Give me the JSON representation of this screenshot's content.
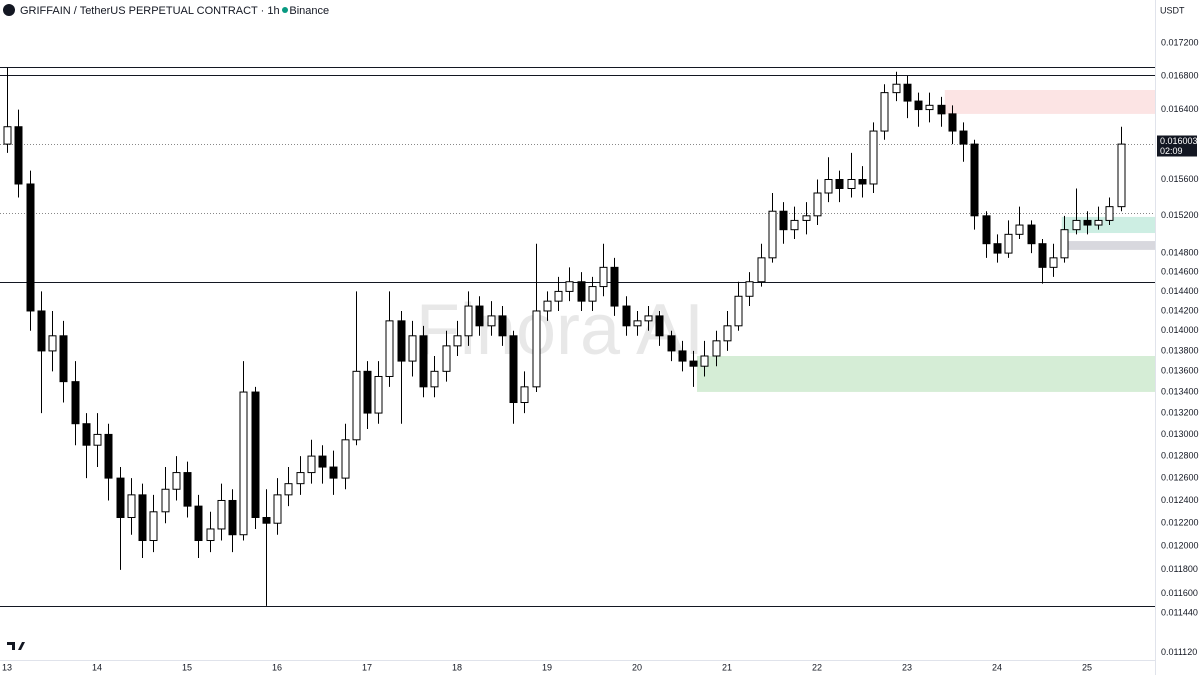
{
  "chart_data": {
    "type": "candlestick",
    "title": "GRIFFAIN / TetherUS PERPETUAL CONTRACT · 1h · Binance",
    "currency_label": "USDT",
    "watermark": "Finora AI",
    "last_price": 0.016003,
    "countdown": "02:09",
    "log_scale": true,
    "grid": false,
    "up_color": "#ffffff",
    "down_color": "#000000",
    "wick_color": "#000000",
    "xlim": [
      12.922,
      25.756
    ],
    "ylim": [
      0.011063,
      0.017737
    ],
    "xticks": [
      13,
      14,
      15,
      16,
      17,
      18,
      19,
      20,
      21,
      22,
      23,
      24,
      25
    ],
    "yticks": [
      {
        "value": 0.0172,
        "label": "0.017200"
      },
      {
        "value": 0.0168,
        "label": "0.016800"
      },
      {
        "value": 0.0164,
        "label": "0.016400"
      },
      {
        "value": 0.0156,
        "label": "0.015600"
      },
      {
        "value": 0.0152,
        "label": "0.015200"
      },
      {
        "value": 0.0148,
        "label": "0.014800"
      },
      {
        "value": 0.0146,
        "label": "0.014600"
      },
      {
        "value": 0.0144,
        "label": "0.014400"
      },
      {
        "value": 0.0142,
        "label": "0.014200"
      },
      {
        "value": 0.014,
        "label": "0.014000"
      },
      {
        "value": 0.0138,
        "label": "0.013800"
      },
      {
        "value": 0.0136,
        "label": "0.013600"
      },
      {
        "value": 0.0134,
        "label": "0.013400"
      },
      {
        "value": 0.0132,
        "label": "0.013200"
      },
      {
        "value": 0.013,
        "label": "0.013000"
      },
      {
        "value": 0.0128,
        "label": "0.012800"
      },
      {
        "value": 0.0126,
        "label": "0.012600"
      },
      {
        "value": 0.0124,
        "label": "0.012400"
      },
      {
        "value": 0.0122,
        "label": "0.012200"
      },
      {
        "value": 0.012,
        "label": "0.012000"
      },
      {
        "value": 0.0118,
        "label": "0.011800"
      },
      {
        "value": 0.0116,
        "label": "0.011600"
      },
      {
        "value": 0.01144,
        "label": "0.011440"
      },
      {
        "value": 0.01112,
        "label": "0.011120"
      }
    ],
    "levels": [
      {
        "value": 0.016907,
        "style": "solid"
      },
      {
        "value": 0.016811,
        "style": "solid"
      },
      {
        "value": 0.014498,
        "style": "solid"
      },
      {
        "value": 0.011498,
        "style": "solid"
      },
      {
        "value": 0.015231,
        "style": "dotted"
      }
    ],
    "zones": [
      {
        "from": 0.016631,
        "to": 0.016349,
        "x_start": 23.42,
        "color": "#fce4e4"
      },
      {
        "from": 0.01375,
        "to": 0.013401,
        "x_start": 20.667,
        "color": "#d5edd6"
      },
      {
        "from": 0.015188,
        "to": 0.015014,
        "x_start": 24.72,
        "color": "#cdeee3"
      },
      {
        "from": 0.014928,
        "to": 0.014834,
        "x_start": 24.72,
        "color": "#d8d8de"
      }
    ],
    "x": [
      13,
      13.125,
      13.25,
      13.375,
      13.5,
      13.625,
      13.75,
      13.875,
      14,
      14.125,
      14.25,
      14.375,
      14.5,
      14.625,
      14.75,
      14.875,
      15,
      15.125,
      15.25,
      15.375,
      15.5,
      15.625,
      15.75,
      15.875,
      16,
      16.125,
      16.25,
      16.375,
      16.5,
      16.625,
      16.75,
      16.875,
      17,
      17.125,
      17.25,
      17.375,
      17.5,
      17.625,
      17.75,
      17.875,
      18,
      18.125,
      18.25,
      18.375,
      18.5,
      18.625,
      18.75,
      18.875,
      19,
      19.125,
      19.25,
      19.375,
      19.5,
      19.625,
      19.75,
      19.875,
      20,
      20.125,
      20.25,
      20.375,
      20.5,
      20.625,
      20.75,
      20.875,
      21,
      21.125,
      21.25,
      21.375,
      21.5,
      21.625,
      21.75,
      21.875,
      22,
      22.125,
      22.25,
      22.375,
      22.5,
      22.625,
      22.75,
      22.875,
      23,
      23.125,
      23.25,
      23.375,
      23.5,
      23.625,
      23.75,
      23.875,
      24,
      24.125,
      24.25,
      24.375,
      24.5,
      24.625,
      24.75,
      24.875,
      25,
      25.125,
      25.25,
      25.375
    ],
    "open": [
      0.016,
      0.0162,
      0.01555,
      0.0142,
      0.0138,
      0.01395,
      0.0135,
      0.0131,
      0.0129,
      0.013,
      0.0126,
      0.01225,
      0.01245,
      0.01205,
      0.0123,
      0.0125,
      0.01265,
      0.01235,
      0.01205,
      0.01215,
      0.0124,
      0.0121,
      0.0134,
      0.01225,
      0.0122,
      0.01245,
      0.01255,
      0.01265,
      0.0128,
      0.0127,
      0.0126,
      0.01295,
      0.0136,
      0.0132,
      0.01355,
      0.0141,
      0.0137,
      0.01395,
      0.01345,
      0.0136,
      0.01385,
      0.01395,
      0.01425,
      0.01405,
      0.01415,
      0.01395,
      0.0133,
      0.01345,
      0.0142,
      0.0143,
      0.0144,
      0.0145,
      0.0143,
      0.01445,
      0.01465,
      0.01425,
      0.01405,
      0.0141,
      0.01415,
      0.01395,
      0.0138,
      0.0137,
      0.01365,
      0.01375,
      0.0139,
      0.01405,
      0.01435,
      0.0145,
      0.01475,
      0.01525,
      0.01505,
      0.01515,
      0.0152,
      0.01545,
      0.0156,
      0.0155,
      0.0156,
      0.01555,
      0.01615,
      0.0166,
      0.0167,
      0.0165,
      0.0164,
      0.01645,
      0.01635,
      0.01615,
      0.016,
      0.0152,
      0.0149,
      0.0148,
      0.015,
      0.0151,
      0.0149,
      0.01465,
      0.01475,
      0.01505,
      0.01515,
      0.0151,
      0.01515,
      0.0153
    ],
    "high": [
      0.0169,
      0.0164,
      0.0157,
      0.0144,
      0.0142,
      0.0141,
      0.0137,
      0.0132,
      0.0132,
      0.0131,
      0.0127,
      0.0126,
      0.01255,
      0.01245,
      0.0127,
      0.0128,
      0.01275,
      0.01245,
      0.0123,
      0.01255,
      0.0125,
      0.0137,
      0.01345,
      0.0125,
      0.0126,
      0.0127,
      0.0128,
      0.01295,
      0.0129,
      0.01285,
      0.0131,
      0.0144,
      0.0137,
      0.0137,
      0.0144,
      0.0142,
      0.0141,
      0.01405,
      0.01375,
      0.014,
      0.0141,
      0.0144,
      0.01435,
      0.0143,
      0.01425,
      0.014,
      0.0136,
      0.0149,
      0.0144,
      0.01455,
      0.01465,
      0.0146,
      0.01455,
      0.0149,
      0.01475,
      0.01435,
      0.0142,
      0.01425,
      0.0142,
      0.014,
      0.0139,
      0.0138,
      0.0139,
      0.014,
      0.0142,
      0.0145,
      0.0146,
      0.0149,
      0.01545,
      0.01535,
      0.0153,
      0.01535,
      0.0156,
      0.01585,
      0.0157,
      0.0159,
      0.01575,
      0.01625,
      0.0167,
      0.01685,
      0.0168,
      0.0166,
      0.0166,
      0.01655,
      0.01645,
      0.01625,
      0.01605,
      0.01525,
      0.015,
      0.01515,
      0.0153,
      0.01515,
      0.01495,
      0.0149,
      0.0152,
      0.0155,
      0.01525,
      0.0153,
      0.0154,
      0.0162
    ],
    "low": [
      0.0159,
      0.0154,
      0.014,
      0.0132,
      0.0136,
      0.0133,
      0.0129,
      0.0126,
      0.0127,
      0.0124,
      0.0118,
      0.0121,
      0.0119,
      0.01195,
      0.0122,
      0.0124,
      0.01225,
      0.0119,
      0.01195,
      0.01205,
      0.01195,
      0.01205,
      0.01215,
      0.0115,
      0.0121,
      0.01235,
      0.01245,
      0.01255,
      0.01255,
      0.01245,
      0.0125,
      0.0129,
      0.01305,
      0.0131,
      0.01345,
      0.0131,
      0.01355,
      0.01335,
      0.01335,
      0.0135,
      0.01375,
      0.01385,
      0.01395,
      0.01395,
      0.01385,
      0.0131,
      0.0132,
      0.0134,
      0.0141,
      0.0142,
      0.0143,
      0.0142,
      0.0142,
      0.01435,
      0.01415,
      0.01395,
      0.01395,
      0.014,
      0.01385,
      0.0137,
      0.0136,
      0.01345,
      0.01355,
      0.01365,
      0.0138,
      0.014,
      0.01425,
      0.01445,
      0.0147,
      0.0149,
      0.01495,
      0.015,
      0.0151,
      0.01535,
      0.01535,
      0.0154,
      0.0154,
      0.01545,
      0.01605,
      0.0165,
      0.0163,
      0.0162,
      0.01625,
      0.0162,
      0.016,
      0.0158,
      0.01505,
      0.01475,
      0.0147,
      0.01475,
      0.01495,
      0.0148,
      0.01448,
      0.01455,
      0.0147,
      0.015,
      0.015,
      0.01505,
      0.0151,
      0.01525
    ],
    "close": [
      0.0162,
      0.01555,
      0.0142,
      0.0138,
      0.01395,
      0.0135,
      0.0131,
      0.0129,
      0.013,
      0.0126,
      0.01225,
      0.01245,
      0.01205,
      0.0123,
      0.0125,
      0.01265,
      0.01235,
      0.01205,
      0.01215,
      0.0124,
      0.0121,
      0.0134,
      0.01225,
      0.0122,
      0.01245,
      0.01255,
      0.01265,
      0.0128,
      0.0127,
      0.0126,
      0.01295,
      0.0136,
      0.0132,
      0.01355,
      0.0141,
      0.0137,
      0.01395,
      0.01345,
      0.0136,
      0.01385,
      0.01395,
      0.01425,
      0.01405,
      0.01415,
      0.01395,
      0.0133,
      0.01345,
      0.0142,
      0.0143,
      0.0144,
      0.0145,
      0.0143,
      0.01445,
      0.01465,
      0.01425,
      0.01405,
      0.0141,
      0.01415,
      0.01395,
      0.0138,
      0.0137,
      0.01365,
      0.01375,
      0.0139,
      0.01405,
      0.01435,
      0.0145,
      0.01475,
      0.01525,
      0.01505,
      0.01515,
      0.0152,
      0.01545,
      0.0156,
      0.0155,
      0.0156,
      0.01555,
      0.01615,
      0.0166,
      0.0167,
      0.0165,
      0.0164,
      0.01645,
      0.01635,
      0.01615,
      0.016,
      0.0152,
      0.0149,
      0.0148,
      0.015,
      0.0151,
      0.0149,
      0.01465,
      0.01475,
      0.01505,
      0.01515,
      0.0151,
      0.01515,
      0.0153,
      0.016
    ]
  }
}
